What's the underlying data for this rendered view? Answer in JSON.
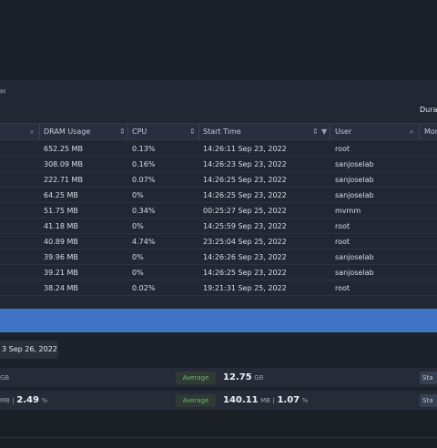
{
  "header": {
    "subtitle_fragment": "M",
    "duration_fragment": "Dura"
  },
  "table": {
    "columns": [
      "DRAM Usage",
      "CPU",
      "Start Time",
      "User",
      "Mon"
    ],
    "rows": [
      {
        "dram": "652.25 MB",
        "cpu": "0.13%",
        "start": "14:26:11 Sep 23, 2022",
        "user": "root"
      },
      {
        "dram": "308.09 MB",
        "cpu": "0.16%",
        "start": "14:26:23 Sep 23, 2022",
        "user": "sanjoselab"
      },
      {
        "dram": "222.71 MB",
        "cpu": "0.07%",
        "start": "14:26:25 Sep 23, 2022",
        "user": "sanjoselab"
      },
      {
        "dram": "64.25 MB",
        "cpu": "0%",
        "start": "14:26:25 Sep 23, 2022",
        "user": "sanjoselab"
      },
      {
        "dram": "51.75 MB",
        "cpu": "0.34%",
        "start": "00:25:27 Sep 25, 2022",
        "user": "mvmm"
      },
      {
        "dram": "41.18 MB",
        "cpu": "0%",
        "start": "14:25:59 Sep 23, 2022",
        "user": "root"
      },
      {
        "dram": "40.89 MB",
        "cpu": "4.74%",
        "start": "23:25:04 Sep 25, 2022",
        "user": "root"
      },
      {
        "dram": "39.96 MB",
        "cpu": "0%",
        "start": "14:26:26 Sep 23, 2022",
        "user": "sanjoselab"
      },
      {
        "dram": "39.21 MB",
        "cpu": "0%",
        "start": "14:26:25 Sep 23, 2022",
        "user": "sanjoselab"
      },
      {
        "dram": "38.24 MB",
        "cpu": "0.02%",
        "start": "19:21:31 Sep 25, 2022",
        "user": "root"
      }
    ]
  },
  "summary": {
    "date_label": "3 Sep 26, 2022",
    "rows": [
      {
        "left_unit": "GB",
        "avg_label": "Average",
        "avg_value": "12.75",
        "avg_unit": "GB",
        "button": "Sta"
      },
      {
        "left_unit": "MB",
        "left_sep": "|",
        "left_value": "2.49",
        "left_pct": "%",
        "avg_label": "Average",
        "avg_value": "140.11",
        "avg_unit": "MB",
        "avg_sep": "|",
        "avg_value2": "1.07",
        "avg_pct": "%",
        "button": "Sta"
      }
    ]
  },
  "colors": {
    "background": "#1c212a",
    "panel": "#222833",
    "selection_bar": "#3f74c7",
    "average_badge_text": "#6fb86a"
  }
}
